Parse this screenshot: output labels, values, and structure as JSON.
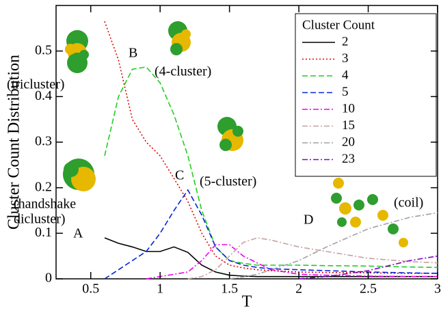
{
  "chart_data": {
    "type": "line",
    "xlabel": "T",
    "ylabel": "Cluster Count Distribution",
    "x": [
      0.6,
      0.7,
      0.8,
      0.9,
      1.0,
      1.1,
      1.2,
      1.3,
      1.4,
      1.5,
      1.6,
      1.7,
      1.8,
      2.0,
      2.2,
      2.5,
      2.8,
      3.0
    ],
    "series": [
      {
        "name": "2",
        "color": "#000000",
        "dash": "solid",
        "values": [
          0.09,
          0.078,
          0.07,
          0.06,
          0.06,
          0.07,
          0.058,
          0.03,
          0.015,
          0.008,
          0.006,
          0.005,
          0.005,
          0.005,
          0.005,
          0.005,
          0.005,
          0.005
        ]
      },
      {
        "name": "3",
        "color": "#e00000",
        "dash": "dotted",
        "values": [
          0.565,
          0.48,
          0.35,
          0.3,
          0.27,
          0.22,
          0.17,
          0.1,
          0.05,
          0.03,
          0.024,
          0.02,
          0.018,
          0.015,
          0.014,
          0.013,
          0.012,
          0.012
        ]
      },
      {
        "name": "4",
        "color": "#22cc22",
        "dash": "dashed",
        "values": [
          0.27,
          0.4,
          0.46,
          0.465,
          0.43,
          0.36,
          0.27,
          0.15,
          0.07,
          0.04,
          0.034,
          0.03,
          0.03,
          0.03,
          0.029,
          0.028,
          0.026,
          0.025
        ]
      },
      {
        "name": "5",
        "color": "#0022dd",
        "dash": "dashed",
        "values": [
          0.0,
          0.02,
          0.04,
          0.06,
          0.1,
          0.15,
          0.195,
          0.14,
          0.07,
          0.04,
          0.03,
          0.025,
          0.022,
          0.02,
          0.018,
          0.015,
          0.013,
          0.012
        ]
      },
      {
        "name": "10",
        "color": "#ee00ee",
        "dash": "dashdot",
        "values": [
          null,
          null,
          null,
          0.0,
          0.005,
          0.01,
          0.015,
          0.04,
          0.075,
          0.075,
          0.05,
          0.035,
          0.02,
          0.01,
          0.008,
          0.006,
          0.005,
          0.005
        ]
      },
      {
        "name": "15",
        "color": "#c8a0a0",
        "dash": "dashdot",
        "values": [
          null,
          null,
          null,
          null,
          null,
          null,
          0.0,
          0.005,
          0.02,
          0.05,
          0.08,
          0.09,
          0.085,
          0.07,
          0.06,
          0.045,
          0.038,
          0.035
        ]
      },
      {
        "name": "20",
        "color": "#a0a0a0",
        "dash": "dashdot",
        "values": [
          null,
          null,
          null,
          null,
          null,
          null,
          null,
          null,
          null,
          0.0,
          0.004,
          0.01,
          0.02,
          0.04,
          0.07,
          0.11,
          0.135,
          0.145
        ]
      },
      {
        "name": "23",
        "color": "#8800cc",
        "dash": "dashdot",
        "values": [
          null,
          null,
          null,
          null,
          null,
          null,
          null,
          null,
          null,
          null,
          null,
          null,
          null,
          0.0,
          0.005,
          0.018,
          0.04,
          0.05
        ]
      }
    ],
    "xlim": [
      0.25,
      3
    ],
    "xticks": [
      0.5,
      1,
      1.5,
      2,
      2.5,
      3
    ],
    "ylim": [
      0,
      0.6
    ],
    "yticks": [
      0,
      0.1,
      0.2,
      0.3,
      0.4,
      0.5
    ],
    "legend_title": "Cluster Count",
    "legend_position": "upper right",
    "annotations": [
      "(tricluster)",
      "(4-cluster)",
      "(5-cluster)",
      "(handshake",
      "dicluster)",
      "(coil)",
      "A",
      "B",
      "C",
      "D"
    ]
  }
}
